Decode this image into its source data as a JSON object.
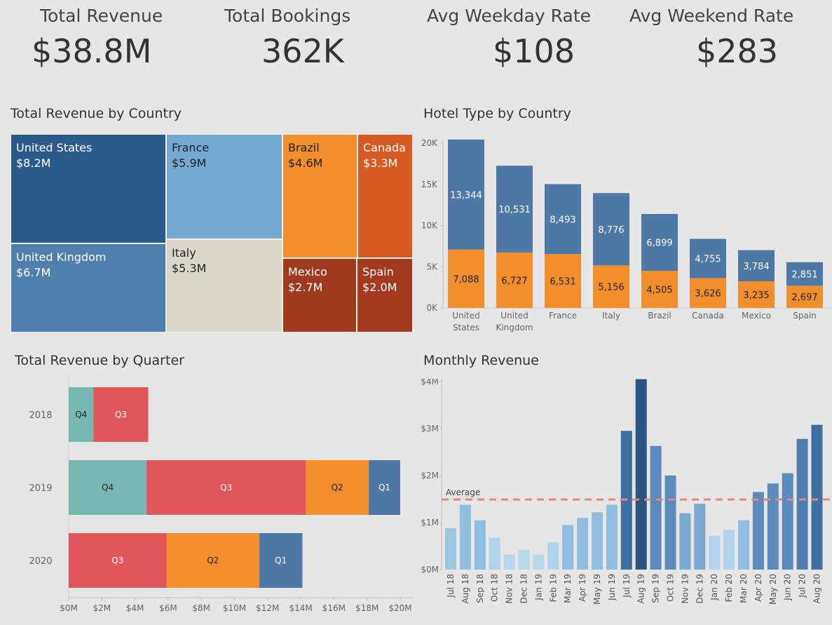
{
  "kpis": [
    {
      "label": "Total Revenue",
      "value": "$38.8M"
    },
    {
      "label": "Total Bookings",
      "value": "362K"
    },
    {
      "label": "Avg Weekday Rate",
      "value": "$108"
    },
    {
      "label": "Avg Weekend Rate",
      "value": "$283"
    }
  ],
  "titles": {
    "treemap": "Total Revenue by Country",
    "hotel": "Hotel Type by Country",
    "quarter": "Total Revenue by Quarter",
    "monthly": "Monthly Revenue"
  },
  "colors": {
    "bg": "#e6e6e6",
    "blue": "#4e79a7",
    "orange": "#f28e2b",
    "red": "#e15759",
    "teal": "#76b7b2",
    "avg_line": "#e8857f"
  },
  "chart_data": [
    {
      "type": "treemap",
      "title": "Total Revenue by Country",
      "items": [
        {
          "name": "United States",
          "value": "$8.2M",
          "color": "#2c5a8a",
          "text": "light"
        },
        {
          "name": "France",
          "value": "$5.9M",
          "color": "#74a9d1",
          "text": "dark"
        },
        {
          "name": "Brazil",
          "value": "$4.6M",
          "color": "#f28e2b",
          "text": "dark"
        },
        {
          "name": "Canada",
          "value": "$3.3M",
          "color": "#d65a22",
          "text": "light"
        },
        {
          "name": "United Kingdom",
          "value": "$6.7M",
          "color": "#4e7fad",
          "text": "light"
        },
        {
          "name": "Italy",
          "value": "$5.3M",
          "color": "#dbd6c8",
          "text": "dark"
        },
        {
          "name": "Mexico",
          "value": "$2.7M",
          "color": "#a03a1f",
          "text": "light"
        },
        {
          "name": "Spain",
          "value": "$2.0M",
          "color": "#a3391e",
          "text": "light"
        }
      ]
    },
    {
      "type": "bar",
      "stacked": true,
      "title": "Hotel Type by Country",
      "categories": [
        "United States",
        "United Kingdom",
        "France",
        "Italy",
        "Brazil",
        "Canada",
        "Mexico",
        "Spain"
      ],
      "category_lines": [
        [
          "United",
          "States"
        ],
        [
          "United",
          "Kingdom"
        ],
        [
          "France"
        ],
        [
          "Italy"
        ],
        [
          "Brazil"
        ],
        [
          "Canada"
        ],
        [
          "Mexico"
        ],
        [
          "Spain"
        ]
      ],
      "series": [
        {
          "values": [
            7088,
            6727,
            6531,
            5156,
            4505,
            3626,
            3235,
            2697
          ],
          "labels": [
            "7,088",
            "6,727",
            "6,531",
            "5,156",
            "4,505",
            "3,626",
            "3,235",
            "2,697"
          ],
          "color": "#f28e2b"
        },
        {
          "values": [
            13344,
            10531,
            8493,
            8776,
            6899,
            4755,
            3784,
            2851
          ],
          "labels": [
            "13,344",
            "10,531",
            "8,493",
            "8,776",
            "6,899",
            "4,755",
            "3,784",
            "2,851"
          ],
          "color": "#4e79a7"
        }
      ],
      "yticks": [
        "0K",
        "5K",
        "10K",
        "15K",
        "20K"
      ],
      "ylim": [
        0,
        20000
      ]
    },
    {
      "type": "bar",
      "orientation": "horizontal",
      "stacked": true,
      "title": "Total Revenue by Quarter",
      "categories": [
        "2018",
        "2019",
        "2020"
      ],
      "rows": [
        [
          {
            "label": "Q4",
            "value": 1.5,
            "color": "#76b7b2"
          },
          {
            "label": "Q3",
            "value": 3.3,
            "color": "#e15759"
          }
        ],
        [
          {
            "label": "Q4",
            "value": 4.7,
            "color": "#76b7b2"
          },
          {
            "label": "Q3",
            "value": 9.6,
            "color": "#e15759"
          },
          {
            "label": "Q2",
            "value": 3.8,
            "color": "#f28e2b"
          },
          {
            "label": "Q1",
            "value": 1.9,
            "color": "#4e79a7"
          }
        ],
        [
          {
            "label": "Q3",
            "value": 5.9,
            "color": "#e15759"
          },
          {
            "label": "Q2",
            "value": 5.6,
            "color": "#f28e2b"
          },
          {
            "label": "Q1",
            "value": 2.6,
            "color": "#4e79a7"
          }
        ]
      ],
      "xticks": [
        "$0M",
        "$2M",
        "$4M",
        "$6M",
        "$8M",
        "$10M",
        "$12M",
        "$14M",
        "$16M",
        "$18M",
        "$20M"
      ],
      "xlim": [
        0,
        21
      ]
    },
    {
      "type": "bar",
      "title": "Monthly Revenue",
      "categories": [
        "Jul 18",
        "Aug 18",
        "Sep 18",
        "Oct 18",
        "Nov 18",
        "Dec 18",
        "Jan 19",
        "Feb 19",
        "Mar 19",
        "Apr 19",
        "May 19",
        "Jun 19",
        "Jul 19",
        "Aug 19",
        "Sep 19",
        "Oct 19",
        "Nov 19",
        "Dec 19",
        "Jan 20",
        "Feb 20",
        "Mar 20",
        "Apr 20",
        "May 20",
        "Jun 20",
        "Jul 20",
        "Aug 20"
      ],
      "values": [
        0.88,
        1.38,
        1.05,
        0.68,
        0.32,
        0.42,
        0.32,
        0.58,
        0.95,
        1.1,
        1.22,
        1.38,
        2.95,
        4.05,
        2.63,
        2.0,
        1.2,
        1.4,
        0.72,
        0.85,
        1.05,
        1.65,
        1.83,
        2.05,
        2.78,
        3.08
      ],
      "colors": [
        "#9dc6e0",
        "#8fbde0",
        "#8fbde0",
        "#aed3ea",
        "#b5d7ec",
        "#b5d7ec",
        "#b5d7ec",
        "#aed3ea",
        "#8fbde0",
        "#8fbde0",
        "#8fbde0",
        "#8fbde0",
        "#3f6f9e",
        "#2a5583",
        "#5a8bbb",
        "#5a8bbb",
        "#7aaad2",
        "#7aaad2",
        "#aed3ea",
        "#aed3ea",
        "#8fbde0",
        "#5a8bbb",
        "#5a8bbb",
        "#5a8bbb",
        "#4f7fae",
        "#3f6f9e"
      ],
      "average": 1.49,
      "average_label": "Average",
      "yticks": [
        "$0M",
        "$1M",
        "$2M",
        "$3M",
        "$4M"
      ],
      "ylim": [
        0,
        4
      ]
    }
  ]
}
